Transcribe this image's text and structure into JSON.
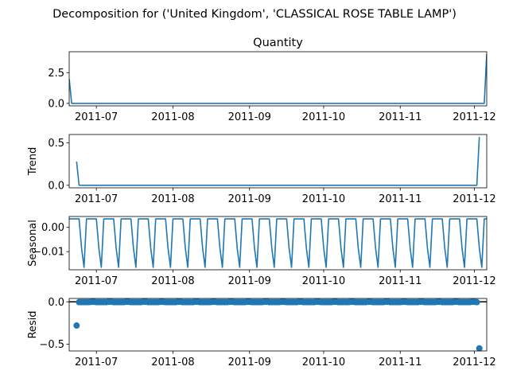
{
  "figure": {
    "suptitle": "Decomposition for ('United Kingdom', 'CLASSICAL ROSE TABLE LAMP')"
  },
  "chart_data": [
    {
      "type": "line",
      "title": "Quantity",
      "ylabel": "",
      "ylim": [
        -0.2,
        4.2
      ],
      "xlim": [
        "2011-06-20",
        "2011-12-06"
      ],
      "yticks": [
        {
          "label": "0.0",
          "value": 0.0
        },
        {
          "label": "2.5",
          "value": 2.5
        }
      ],
      "xticks": [
        {
          "label": "2011-07",
          "date": "2011-07-01"
        },
        {
          "label": "2011-08",
          "date": "2011-08-01"
        },
        {
          "label": "2011-09",
          "date": "2011-09-01"
        },
        {
          "label": "2011-10",
          "date": "2011-10-01"
        },
        {
          "label": "2011-11",
          "date": "2011-11-01"
        },
        {
          "label": "2011-12",
          "date": "2011-12-01"
        }
      ],
      "color": "#1f77b4",
      "series": [
        {
          "points": [
            [
              "2011-06-20",
              2.0
            ],
            [
              "2011-06-21",
              0.0
            ],
            [
              "2011-12-05",
              0.0
            ],
            [
              "2011-12-06",
              4.0
            ]
          ]
        }
      ]
    },
    {
      "type": "line",
      "title": "",
      "ylabel": "Trend",
      "ylim": [
        -0.03,
        0.6
      ],
      "xlim": [
        "2011-06-20",
        "2011-12-06"
      ],
      "yticks": [
        {
          "label": "0.0",
          "value": 0.0
        },
        {
          "label": "0.5",
          "value": 0.5
        }
      ],
      "xticks": [
        {
          "label": "2011-07",
          "date": "2011-07-01"
        },
        {
          "label": "2011-08",
          "date": "2011-08-01"
        },
        {
          "label": "2011-09",
          "date": "2011-09-01"
        },
        {
          "label": "2011-10",
          "date": "2011-10-01"
        },
        {
          "label": "2011-11",
          "date": "2011-11-01"
        },
        {
          "label": "2011-12",
          "date": "2011-12-01"
        }
      ],
      "color": "#1f77b4",
      "series": [
        {
          "points": [
            [
              "2011-06-23",
              0.28
            ],
            [
              "2011-06-24",
              0.0
            ],
            [
              "2011-12-02",
              0.0
            ],
            [
              "2011-12-03",
              0.57
            ]
          ]
        }
      ]
    },
    {
      "type": "line",
      "title": "",
      "ylabel": "Seasonal",
      "ylim": [
        -0.0175,
        0.0045
      ],
      "xlim": [
        "2011-06-20",
        "2011-12-06"
      ],
      "yticks": [
        {
          "label": "0.00",
          "value": 0.0
        },
        {
          "label": "−0.01",
          "value": -0.01
        }
      ],
      "xticks": [
        {
          "label": "2011-07",
          "date": "2011-07-01"
        },
        {
          "label": "2011-08",
          "date": "2011-08-01"
        },
        {
          "label": "2011-09",
          "date": "2011-09-01"
        },
        {
          "label": "2011-10",
          "date": "2011-10-01"
        },
        {
          "label": "2011-11",
          "date": "2011-11-01"
        },
        {
          "label": "2011-12",
          "date": "2011-12-01"
        }
      ],
      "color": "#1f77b4",
      "series": [
        {
          "start": "2011-06-20",
          "end": "2011-12-06",
          "weekly_pattern": [
            0.0035,
            0.0035,
            0.0035,
            0.0035,
            0.0035,
            -0.0085,
            -0.0165
          ]
        }
      ]
    },
    {
      "type": "scatter",
      "title": "",
      "ylabel": "Resid",
      "ylim": [
        -0.58,
        0.04
      ],
      "xlim": [
        "2011-06-20",
        "2011-12-06"
      ],
      "yticks": [
        {
          "label": "0.0",
          "value": 0.0
        },
        {
          "label": "−0.5",
          "value": -0.5
        }
      ],
      "xticks": [
        {
          "label": "2011-07",
          "date": "2011-07-01"
        },
        {
          "label": "2011-08",
          "date": "2011-08-01"
        },
        {
          "label": "2011-09",
          "date": "2011-09-01"
        },
        {
          "label": "2011-10",
          "date": "2011-10-01"
        },
        {
          "label": "2011-11",
          "date": "2011-11-01"
        },
        {
          "label": "2011-12",
          "date": "2011-12-01"
        }
      ],
      "color": "#1f77b4",
      "zero_line": true,
      "series": [
        {
          "start": "2011-06-24",
          "end": "2011-12-02",
          "baseline_value": 0.0,
          "weekly_pattern": [
            -0.004,
            -0.004,
            -0.004,
            -0.004,
            -0.004,
            0.0,
            0.0
          ],
          "outliers": [
            [
              "2011-06-23",
              -0.28
            ],
            [
              "2011-12-03",
              -0.55
            ]
          ]
        }
      ]
    }
  ]
}
